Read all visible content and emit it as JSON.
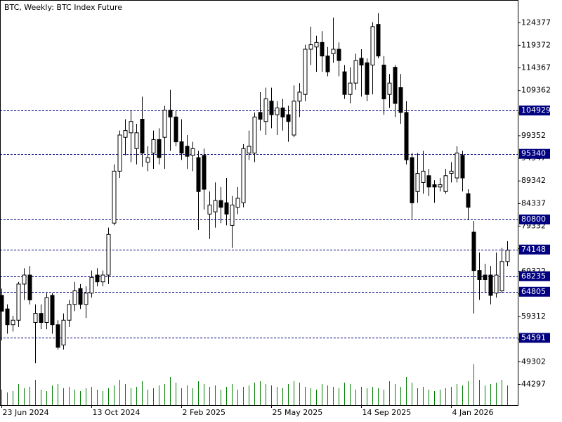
{
  "chart_data": {
    "type": "candlestick",
    "title": "BTC, Weekly:  BTC Index Future",
    "categories": [
      "23 Jun 2024",
      null,
      null,
      null,
      null,
      null,
      null,
      null,
      null,
      null,
      null,
      null,
      null,
      null,
      null,
      null,
      "13 Oct 2024",
      null,
      null,
      null,
      null,
      null,
      null,
      null,
      null,
      null,
      null,
      null,
      null,
      null,
      null,
      null,
      "2 Feb 2025",
      null,
      null,
      null,
      null,
      null,
      null,
      null,
      null,
      null,
      null,
      null,
      null,
      null,
      null,
      null,
      "25 May 2025",
      null,
      null,
      null,
      null,
      null,
      null,
      null,
      null,
      null,
      null,
      null,
      null,
      null,
      null,
      null,
      "14 Sep 2025",
      null,
      null,
      null,
      null,
      null,
      null,
      null,
      null,
      null,
      null,
      null,
      null,
      null,
      null,
      null,
      "4 Jan 2026",
      null,
      null,
      null,
      null,
      null,
      null,
      null,
      null,
      null,
      null
    ],
    "open": [
      64000,
      61000,
      57500,
      58500,
      66500,
      68500,
      58000,
      60000,
      58000,
      64000,
      57500,
      53000,
      58500,
      62000,
      65500,
      62000,
      64500,
      68500,
      67000,
      68500,
      80000,
      91500,
      99000,
      100000,
      96500,
      103000,
      93500,
      95500,
      98500,
      99000,
      105000,
      103500,
      98000,
      97000,
      95000,
      94500,
      95000,
      82000,
      82500,
      85000,
      84500,
      79500,
      83500,
      84500,
      95500,
      95500,
      104500,
      102500,
      107000,
      104000,
      105500,
      104000,
      99500,
      107000,
      108500,
      118500,
      119000,
      120000,
      117000,
      117500,
      118500,
      113500,
      108500,
      111000,
      116500,
      115500,
      115000,
      124000,
      115000,
      108500,
      114500,
      110000,
      104500,
      94500,
      87000,
      89000,
      90500,
      88500,
      88000,
      87000,
      91000,
      90000,
      95000,
      86500,
      78000,
      69500,
      68500,
      68500,
      64500,
      65000,
      71500
    ],
    "high": [
      65500,
      62000,
      59500,
      67000,
      70000,
      70500,
      62000,
      62000,
      64500,
      64500,
      58500,
      60000,
      63000,
      67000,
      66500,
      66000,
      69500,
      70000,
      69500,
      79000,
      93000,
      100500,
      103000,
      105000,
      102000,
      108000,
      97000,
      100500,
      101000,
      106000,
      109500,
      105000,
      103000,
      99500,
      98000,
      96000,
      96500,
      87000,
      89000,
      88000,
      90000,
      86000,
      88000,
      97500,
      100500,
      104500,
      109000,
      110000,
      110000,
      107000,
      107500,
      106000,
      110500,
      111000,
      119500,
      123500,
      121500,
      122500,
      119000,
      125500,
      120000,
      115000,
      114500,
      117500,
      118500,
      116500,
      124500,
      126500,
      117000,
      113000,
      115000,
      113000,
      107000,
      95500,
      95500,
      96000,
      92000,
      89500,
      90000,
      92000,
      93500,
      97000,
      96000,
      87500,
      80500,
      73500,
      71000,
      70500,
      73500,
      74500,
      76000
    ],
    "low": [
      54000,
      55500,
      56000,
      57000,
      63000,
      62000,
      49000,
      56500,
      56500,
      55500,
      52000,
      52000,
      57000,
      60500,
      61000,
      59000,
      63500,
      66000,
      66000,
      66500,
      79500,
      90000,
      95000,
      93500,
      93000,
      92500,
      91500,
      92000,
      93000,
      92000,
      96000,
      97000,
      94000,
      92000,
      91500,
      78500,
      83000,
      76500,
      79000,
      80000,
      79500,
      74500,
      82000,
      83500,
      94000,
      93500,
      100500,
      99500,
      101000,
      99500,
      100500,
      98000,
      99000,
      103500,
      107000,
      115000,
      113500,
      113500,
      112500,
      115500,
      112500,
      107500,
      106500,
      109500,
      108000,
      107000,
      108500,
      116500,
      104000,
      105500,
      103500,
      102000,
      93000,
      81000,
      84500,
      86500,
      86000,
      84500,
      87000,
      86500,
      89000,
      89000,
      87000,
      80800,
      60000,
      63000,
      64500,
      62000,
      63500,
      64500,
      70500
    ],
    "close": [
      60500,
      57500,
      58500,
      66500,
      68500,
      63000,
      60000,
      58000,
      63500,
      57500,
      52500,
      58500,
      62000,
      65000,
      62000,
      64500,
      68000,
      67000,
      68500,
      77500,
      91500,
      99500,
      100500,
      102500,
      100000,
      95500,
      94500,
      98500,
      94500,
      105000,
      103500,
      98000,
      95500,
      94800,
      96500,
      87000,
      87500,
      84000,
      85000,
      83500,
      82000,
      84000,
      85500,
      96500,
      97000,
      103500,
      103000,
      107500,
      104000,
      105500,
      103500,
      102500,
      107000,
      109000,
      118500,
      119500,
      120000,
      117000,
      113500,
      118500,
      116000,
      108500,
      111000,
      116000,
      115000,
      108500,
      123500,
      117000,
      107500,
      111000,
      106500,
      104500,
      94000,
      84500,
      91000,
      91500,
      88000,
      88000,
      88500,
      90500,
      91500,
      95500,
      90000,
      83500,
      69500,
      67500,
      67500,
      64000,
      68500,
      71500,
      74000
    ],
    "volume": [
      22,
      18,
      20,
      30,
      24,
      26,
      36,
      22,
      20,
      28,
      30,
      24,
      26,
      22,
      20,
      24,
      26,
      22,
      20,
      24,
      28,
      36,
      30,
      24,
      26,
      34,
      22,
      24,
      28,
      30,
      40,
      32,
      24,
      28,
      24,
      34,
      30,
      26,
      28,
      22,
      26,
      30,
      22,
      26,
      28,
      32,
      34,
      30,
      28,
      26,
      24,
      30,
      34,
      32,
      26,
      24,
      22,
      30,
      28,
      26,
      24,
      32,
      30,
      22,
      26,
      24,
      26,
      24,
      22,
      34,
      30,
      26,
      40,
      32,
      24,
      26,
      22,
      20,
      22,
      24,
      26,
      30,
      28,
      34,
      58,
      36,
      28,
      30,
      32,
      36,
      28
    ],
    "volume_lim": [
      0,
      100
    ],
    "ylim": [
      39700,
      129400
    ],
    "yticks": [
      44297,
      49302,
      54307,
      59312,
      64317,
      69322,
      74327,
      79332,
      84337,
      89342,
      94347,
      99352,
      104357,
      109362,
      114367,
      119372,
      124377
    ],
    "levels": [
      104929,
      95340,
      80800,
      74148,
      68235,
      64805,
      54591
    ],
    "up_color": "#ffffff",
    "down_color": "#000000",
    "volume_color": "#008000",
    "level_color": "#000080"
  }
}
